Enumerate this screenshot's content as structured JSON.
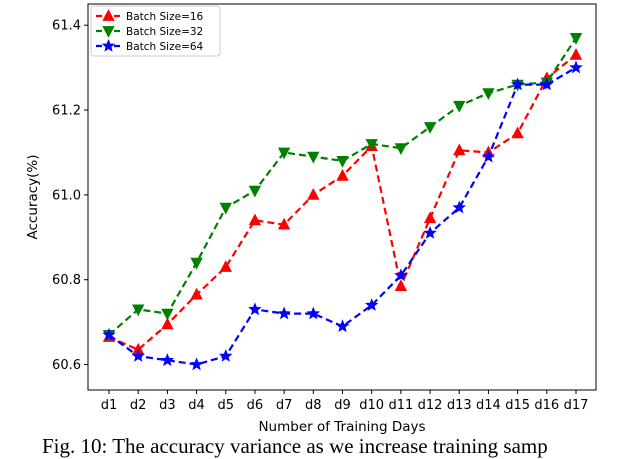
{
  "chart_data": {
    "type": "line",
    "xlabel": "Number of Training Days",
    "ylabel": "Accuracy(%)",
    "categories": [
      "d1",
      "d2",
      "d3",
      "d4",
      "d5",
      "d6",
      "d7",
      "d8",
      "d9",
      "d10",
      "d11",
      "d12",
      "d13",
      "d14",
      "d15",
      "d16",
      "d17"
    ],
    "ylim": [
      60.54,
      61.45
    ],
    "yticks": [
      60.6,
      60.8,
      61.0,
      61.2,
      61.4
    ],
    "ytick_labels": [
      "60.6",
      "60.8",
      "61.0",
      "61.2",
      "61.4"
    ],
    "legend_position": "top-left",
    "grid": false,
    "series": [
      {
        "name": "Batch Size=16",
        "color": "#ff0000",
        "marker": "triangle-up",
        "line_style": "dashed",
        "values": [
          60.665,
          60.635,
          60.695,
          60.765,
          60.83,
          60.94,
          60.93,
          61.0,
          61.045,
          61.115,
          60.785,
          60.945,
          61.105,
          61.1,
          61.145,
          61.275,
          61.33
        ]
      },
      {
        "name": "Batch Size=32",
        "color": "#008000",
        "marker": "triangle-down",
        "line_style": "dashed",
        "values": [
          60.67,
          60.73,
          60.72,
          60.84,
          60.97,
          61.01,
          61.1,
          61.09,
          61.08,
          61.12,
          61.11,
          61.16,
          61.21,
          61.24,
          61.26,
          61.265,
          61.37
        ]
      },
      {
        "name": "Batch Size=64",
        "color": "#0000ff",
        "marker": "star",
        "line_style": "dashed",
        "values": [
          60.67,
          60.62,
          60.61,
          60.6,
          60.62,
          60.73,
          60.72,
          60.72,
          60.69,
          60.74,
          60.81,
          60.91,
          60.97,
          61.09,
          61.26,
          61.26,
          61.3
        ]
      }
    ]
  },
  "caption": "Fig. 10: The accuracy variance as we increase training samp"
}
